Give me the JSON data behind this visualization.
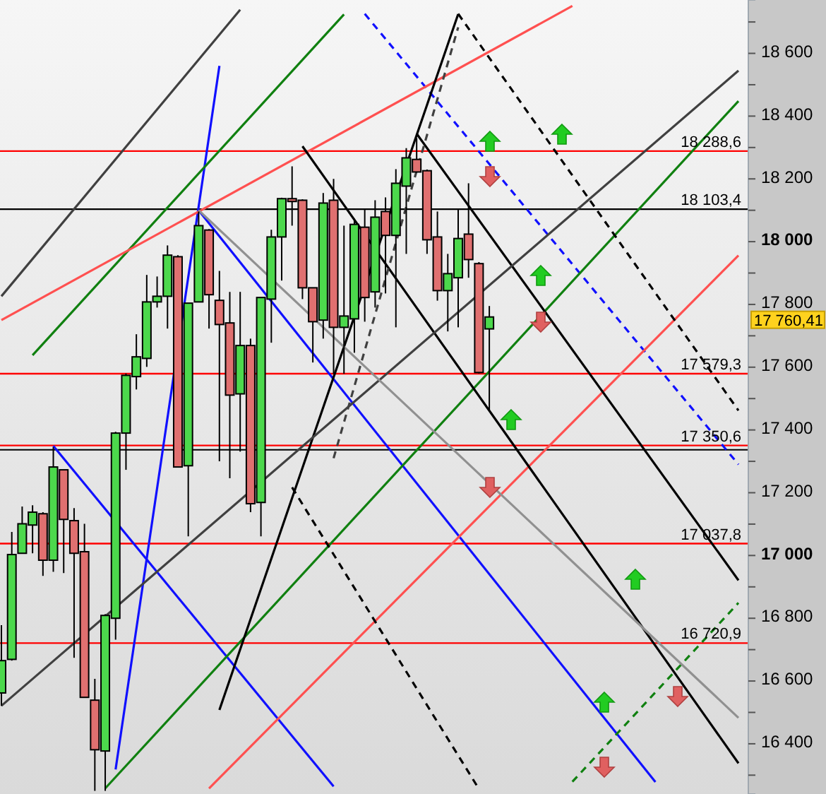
{
  "chart_data": {
    "type": "candlestick",
    "tick_labels": "y",
    "ylim": [
      16240,
      18770
    ],
    "yticks": [
      {
        "value": 16300,
        "label": null
      },
      {
        "value": 16400,
        "label": "16 400"
      },
      {
        "value": 16500,
        "label": null
      },
      {
        "value": 16600,
        "label": "16 600"
      },
      {
        "value": 16700,
        "label": null
      },
      {
        "value": 16800,
        "label": "16 800"
      },
      {
        "value": 16900,
        "label": null
      },
      {
        "value": 17000,
        "label": "17 000"
      },
      {
        "value": 17100,
        "label": null
      },
      {
        "value": 17200,
        "label": "17 200"
      },
      {
        "value": 17300,
        "label": null
      },
      {
        "value": 17400,
        "label": "17 400"
      },
      {
        "value": 17500,
        "label": null
      },
      {
        "value": 17600,
        "label": "17 600"
      },
      {
        "value": 17700,
        "label": null
      },
      {
        "value": 17800,
        "label": "17 800"
      },
      {
        "value": 17900,
        "label": null
      },
      {
        "value": 18000,
        "label": "18 000"
      },
      {
        "value": 18100,
        "label": null
      },
      {
        "value": 18200,
        "label": "18 200"
      },
      {
        "value": 18300,
        "label": null
      },
      {
        "value": 18400,
        "label": "18 400"
      },
      {
        "value": 18500,
        "label": null
      },
      {
        "value": 18600,
        "label": "18 600"
      },
      {
        "value": 18700,
        "label": null
      }
    ],
    "categories": [
      null,
      null,
      null,
      null,
      null,
      null,
      null,
      null,
      null,
      null,
      null,
      null,
      null,
      null,
      null,
      null,
      null,
      null,
      null,
      null,
      null,
      null,
      null,
      null,
      null,
      null,
      null,
      null,
      null,
      null,
      null,
      null,
      null,
      null,
      null,
      null,
      null,
      null,
      null,
      null,
      null,
      null,
      null,
      null,
      null,
      null,
      null,
      null,
      null,
      null,
      null,
      null,
      null,
      null,
      null,
      null,
      null,
      null,
      null,
      null,
      null,
      null,
      null,
      null,
      null,
      null,
      null,
      null,
      null,
      null,
      null,
      null
    ],
    "ohlc": [
      [
        16562,
        16778,
        16521,
        16665
      ],
      [
        16669,
        17075,
        16665,
        17003
      ],
      [
        17007,
        17156,
        17007,
        17101
      ],
      [
        17097,
        17160,
        17007,
        17138
      ],
      [
        17133,
        17138,
        16935,
        16985
      ],
      [
        16985,
        17345,
        16948,
        17282
      ],
      [
        17273,
        17273,
        16944,
        17115
      ],
      [
        17111,
        17151,
        16674,
        17007
      ],
      [
        17012,
        17101,
        16548,
        16548
      ],
      [
        16539,
        16607,
        16250,
        16381
      ],
      [
        16377,
        16813,
        16250,
        16809
      ],
      [
        16800,
        17394,
        16732,
        17390
      ],
      [
        17390,
        17580,
        17273,
        17574
      ],
      [
        17570,
        17705,
        17529,
        17633
      ],
      [
        17628,
        17894,
        17601,
        17808
      ],
      [
        17808,
        17889,
        17790,
        17826
      ],
      [
        17826,
        17988,
        17723,
        17957
      ],
      [
        17952,
        17957,
        17280,
        17282
      ],
      [
        17286,
        17804,
        17061,
        17804
      ],
      [
        17808,
        18096,
        17808,
        18051
      ],
      [
        18037,
        18040,
        17723,
        17831
      ],
      [
        17813,
        17907,
        17300,
        17736
      ],
      [
        17741,
        17840,
        17246,
        17511
      ],
      [
        17515,
        17840,
        17331,
        17669
      ],
      [
        17669,
        17691,
        17138,
        17165
      ],
      [
        17169,
        17822,
        17061,
        17822
      ],
      [
        17817,
        18038,
        17678,
        18015
      ],
      [
        18015,
        18140,
        17876,
        18137
      ],
      [
        18137,
        18240,
        18051,
        18128
      ],
      [
        18132,
        18135,
        17817,
        17853
      ],
      [
        17853,
        17853,
        17615,
        17745
      ],
      [
        17750,
        18155,
        17691,
        18123
      ],
      [
        18132,
        18200,
        17579,
        17727
      ],
      [
        17727,
        18051,
        17579,
        17763
      ],
      [
        17754,
        18073,
        17646,
        18055
      ],
      [
        18046,
        18105,
        17745,
        17822
      ],
      [
        17840,
        18132,
        17790,
        18078
      ],
      [
        18096,
        18141,
        17835,
        18020
      ],
      [
        18020,
        18231,
        17727,
        18186
      ],
      [
        18177,
        18298,
        17961,
        18267
      ],
      [
        18262,
        18330,
        18220,
        18222
      ],
      [
        18226,
        18230,
        17961,
        18006
      ],
      [
        18015,
        18096,
        17812,
        17844
      ],
      [
        17844,
        17961,
        17714,
        17898
      ],
      [
        17885,
        18105,
        17727,
        18010
      ],
      [
        18024,
        18186,
        17885,
        17943
      ],
      [
        17930,
        17935,
        17580,
        17583
      ],
      [
        17722,
        17795,
        17461,
        17760
      ],
      null,
      null,
      null,
      null,
      null,
      null,
      null,
      null,
      null,
      null,
      null,
      null,
      null,
      null,
      null,
      null,
      null,
      null,
      null,
      null,
      null,
      null,
      null,
      null
    ],
    "series": [
      {
        "type": "line",
        "color": "#1010ff",
        "line_style": "solid",
        "values": [
          null,
          null,
          null,
          null,
          null,
          17349,
          null,
          null,
          null,
          null,
          null,
          null,
          null,
          null,
          null,
          null,
          null,
          null,
          null,
          null,
          null,
          null,
          null,
          null,
          null,
          null,
          null,
          null,
          null,
          null,
          null,
          null,
          16264,
          null,
          null,
          null,
          null,
          null,
          null,
          null,
          null,
          null,
          null,
          null,
          null,
          null,
          null,
          null,
          null,
          null,
          null,
          null,
          null,
          null,
          null,
          null,
          null,
          null,
          null,
          null,
          null,
          null,
          null,
          null,
          null,
          null,
          null,
          null,
          null,
          null,
          null,
          null
        ]
      },
      {
        "type": "line",
        "color": "#1010ff",
        "line_style": "solid",
        "values": [
          null,
          null,
          null,
          null,
          null,
          null,
          null,
          null,
          null,
          null,
          null,
          16318,
          null,
          null,
          null,
          null,
          null,
          null,
          null,
          null,
          null,
          18560,
          null,
          null,
          null,
          null,
          null,
          null,
          null,
          null,
          null,
          null,
          null,
          null,
          null,
          null,
          null,
          null,
          null,
          null,
          null,
          null,
          null,
          null,
          null,
          null,
          null,
          null,
          null,
          null,
          null,
          null,
          null,
          null,
          null,
          null,
          null,
          null,
          null,
          null,
          null,
          null,
          null,
          null,
          null,
          null,
          null,
          null,
          null,
          null,
          null,
          null
        ]
      },
      {
        "type": "line",
        "color": "#1010ff",
        "line_style": "solid",
        "values": [
          null,
          null,
          null,
          null,
          null,
          null,
          null,
          null,
          null,
          null,
          null,
          null,
          null,
          null,
          null,
          null,
          null,
          null,
          null,
          18100,
          null,
          null,
          null,
          null,
          null,
          null,
          null,
          null,
          null,
          null,
          null,
          null,
          null,
          null,
          null,
          null,
          null,
          null,
          null,
          null,
          null,
          null,
          null,
          null,
          null,
          null,
          null,
          null,
          null,
          null,
          null,
          null,
          null,
          null,
          null,
          null,
          null,
          null,
          null,
          null,
          null,
          null,
          null,
          16278,
          null,
          null,
          null,
          null,
          null,
          null,
          null,
          null
        ]
      },
      {
        "type": "line",
        "color": "#1010ff",
        "line_style": "dashed",
        "values": [
          null,
          null,
          null,
          null,
          null,
          null,
          null,
          null,
          null,
          null,
          null,
          null,
          null,
          null,
          null,
          null,
          null,
          null,
          null,
          null,
          null,
          null,
          null,
          null,
          null,
          null,
          null,
          null,
          null,
          null,
          null,
          null,
          null,
          null,
          null,
          18726,
          null,
          null,
          null,
          null,
          null,
          null,
          null,
          null,
          null,
          null,
          null,
          null,
          null,
          null,
          null,
          null,
          null,
          null,
          null,
          null,
          null,
          null,
          null,
          null,
          null,
          null,
          null,
          null,
          null,
          null,
          null,
          null,
          null,
          null,
          null,
          17290
        ]
      },
      {
        "type": "line",
        "color": "#108010",
        "line_style": "solid",
        "values": [
          null,
          null,
          null,
          17638,
          null,
          null,
          null,
          null,
          null,
          null,
          null,
          null,
          null,
          null,
          null,
          null,
          null,
          null,
          null,
          null,
          null,
          null,
          null,
          null,
          null,
          null,
          null,
          null,
          null,
          null,
          null,
          null,
          null,
          18724,
          null,
          null,
          null,
          null,
          null,
          null,
          null,
          null,
          null,
          null,
          null,
          null,
          null,
          null,
          null,
          null,
          null,
          null,
          null,
          null,
          null,
          null,
          null,
          null,
          null,
          null,
          null,
          null,
          null,
          null,
          null,
          null,
          null,
          null,
          null,
          null,
          null,
          null
        ]
      },
      {
        "type": "line",
        "color": "#108010",
        "line_style": "solid",
        "values": [
          null,
          null,
          null,
          null,
          null,
          null,
          null,
          null,
          null,
          null,
          16258,
          null,
          null,
          null,
          null,
          null,
          null,
          null,
          null,
          null,
          null,
          null,
          null,
          null,
          null,
          null,
          null,
          null,
          null,
          null,
          null,
          null,
          null,
          null,
          null,
          null,
          null,
          null,
          null,
          null,
          null,
          null,
          null,
          null,
          null,
          null,
          null,
          null,
          null,
          null,
          null,
          null,
          null,
          null,
          null,
          null,
          null,
          null,
          null,
          null,
          null,
          null,
          null,
          null,
          null,
          null,
          null,
          null,
          null,
          null,
          null,
          18448
        ]
      },
      {
        "type": "line",
        "color": "#108010",
        "line_style": "dashed",
        "values": [
          null,
          null,
          null,
          null,
          null,
          null,
          null,
          null,
          null,
          null,
          null,
          null,
          null,
          null,
          null,
          null,
          null,
          null,
          null,
          null,
          null,
          null,
          null,
          null,
          null,
          null,
          null,
          null,
          null,
          null,
          null,
          null,
          null,
          null,
          null,
          null,
          null,
          null,
          null,
          null,
          null,
          null,
          null,
          null,
          null,
          null,
          null,
          null,
          null,
          null,
          null,
          null,
          null,
          null,
          null,
          16279,
          null,
          null,
          null,
          null,
          null,
          null,
          null,
          null,
          null,
          null,
          null,
          null,
          null,
          null,
          null,
          16849
        ]
      },
      {
        "type": "line",
        "color": "#ff5050",
        "line_style": "solid",
        "values": [
          17750,
          null,
          null,
          null,
          null,
          null,
          null,
          null,
          null,
          null,
          null,
          null,
          null,
          null,
          null,
          null,
          null,
          null,
          null,
          null,
          null,
          null,
          null,
          null,
          null,
          null,
          null,
          null,
          null,
          null,
          null,
          null,
          null,
          null,
          null,
          null,
          null,
          null,
          null,
          null,
          null,
          null,
          null,
          null,
          null,
          null,
          null,
          null,
          null,
          null,
          null,
          null,
          null,
          null,
          null,
          18751,
          null,
          null,
          null,
          null,
          null,
          null,
          null,
          null,
          null,
          null,
          null,
          null,
          null,
          null,
          null,
          null
        ]
      },
      {
        "type": "line",
        "color": "#ff5050",
        "line_style": "solid",
        "values": [
          null,
          null,
          null,
          null,
          null,
          null,
          null,
          null,
          null,
          null,
          null,
          null,
          null,
          null,
          null,
          null,
          null,
          null,
          null,
          null,
          16258,
          null,
          null,
          null,
          null,
          null,
          null,
          null,
          null,
          null,
          null,
          null,
          null,
          null,
          null,
          null,
          null,
          null,
          null,
          null,
          null,
          null,
          null,
          null,
          null,
          null,
          null,
          null,
          null,
          null,
          null,
          null,
          null,
          null,
          null,
          null,
          null,
          null,
          null,
          null,
          null,
          null,
          null,
          null,
          null,
          null,
          null,
          null,
          null,
          null,
          null,
          17956
        ]
      },
      {
        "type": "line",
        "color": "#000000",
        "line_style": "solid",
        "values": [
          null,
          null,
          null,
          null,
          null,
          null,
          null,
          null,
          null,
          null,
          null,
          null,
          null,
          null,
          null,
          null,
          null,
          null,
          null,
          null,
          null,
          16508,
          null,
          null,
          null,
          null,
          null,
          null,
          null,
          null,
          null,
          null,
          null,
          null,
          null,
          null,
          null,
          null,
          null,
          null,
          null,
          null,
          null,
          null,
          18725,
          null,
          null,
          null,
          null,
          null,
          null,
          null,
          null,
          null,
          null,
          null,
          null,
          null,
          null,
          null,
          null,
          null,
          null,
          null,
          null,
          null,
          null,
          null,
          null,
          null,
          null,
          null
        ]
      },
      {
        "type": "line",
        "color": "#000000",
        "line_style": "solid",
        "values": [
          null,
          null,
          null,
          null,
          null,
          null,
          null,
          null,
          null,
          null,
          null,
          null,
          null,
          null,
          null,
          null,
          null,
          null,
          null,
          null,
          null,
          null,
          null,
          null,
          null,
          null,
          null,
          null,
          null,
          18304,
          null,
          null,
          null,
          null,
          null,
          null,
          null,
          null,
          null,
          null,
          null,
          null,
          null,
          null,
          null,
          null,
          null,
          null,
          null,
          null,
          null,
          null,
          null,
          null,
          null,
          null,
          null,
          null,
          null,
          null,
          null,
          null,
          null,
          null,
          null,
          null,
          null,
          null,
          null,
          null,
          null,
          16338
        ]
      },
      {
        "type": "line",
        "color": "#000000",
        "line_style": "solid",
        "values": [
          null,
          null,
          null,
          null,
          null,
          null,
          null,
          null,
          null,
          null,
          null,
          null,
          null,
          null,
          null,
          null,
          null,
          null,
          null,
          null,
          null,
          null,
          null,
          null,
          null,
          null,
          null,
          null,
          null,
          null,
          null,
          null,
          null,
          null,
          null,
          null,
          null,
          null,
          null,
          null,
          18344,
          null,
          null,
          null,
          null,
          null,
          null,
          null,
          null,
          null,
          null,
          null,
          null,
          null,
          null,
          null,
          null,
          null,
          null,
          null,
          null,
          null,
          null,
          null,
          null,
          null,
          null,
          null,
          null,
          null,
          null,
          16921
        ]
      },
      {
        "type": "line",
        "color": "#000000",
        "line_style": "dashed",
        "values": [
          null,
          null,
          null,
          null,
          null,
          null,
          null,
          null,
          null,
          null,
          null,
          null,
          null,
          null,
          null,
          null,
          null,
          null,
          null,
          null,
          null,
          null,
          null,
          null,
          null,
          null,
          null,
          null,
          null,
          null,
          null,
          null,
          null,
          null,
          null,
          null,
          null,
          null,
          null,
          null,
          null,
          null,
          null,
          null,
          18726,
          null,
          null,
          null,
          null,
          null,
          null,
          null,
          null,
          null,
          null,
          null,
          null,
          null,
          null,
          null,
          null,
          null,
          null,
          null,
          null,
          null,
          null,
          null,
          null,
          null,
          null,
          17462
        ]
      },
      {
        "type": "line",
        "color": "#000000",
        "line_style": "dashed",
        "values": [
          null,
          null,
          null,
          null,
          null,
          null,
          null,
          null,
          null,
          null,
          null,
          null,
          null,
          null,
          null,
          null,
          null,
          null,
          null,
          null,
          null,
          null,
          null,
          null,
          null,
          null,
          null,
          null,
          17217,
          null,
          null,
          null,
          null,
          null,
          null,
          null,
          null,
          null,
          null,
          null,
          null,
          null,
          null,
          null,
          null,
          null,
          16256,
          null,
          null,
          null,
          null,
          null,
          null,
          null,
          null,
          null,
          null,
          null,
          null,
          null,
          null,
          null,
          null,
          null,
          null,
          null,
          null,
          null,
          null,
          null,
          null,
          null
        ]
      },
      {
        "type": "line",
        "color": "#404040",
        "line_style": "solid",
        "values": [
          16521,
          null,
          null,
          null,
          null,
          null,
          null,
          null,
          null,
          null,
          null,
          null,
          null,
          null,
          null,
          null,
          null,
          null,
          null,
          null,
          null,
          null,
          null,
          null,
          null,
          null,
          null,
          null,
          null,
          null,
          null,
          null,
          null,
          null,
          null,
          null,
          null,
          null,
          null,
          null,
          null,
          null,
          null,
          null,
          null,
          null,
          null,
          null,
          null,
          null,
          null,
          null,
          null,
          null,
          null,
          null,
          null,
          null,
          null,
          null,
          null,
          null,
          null,
          null,
          null,
          null,
          null,
          null,
          null,
          null,
          null,
          18545
        ]
      },
      {
        "type": "line",
        "color": "#404040",
        "line_style": "solid",
        "values": [
          17826,
          null,
          null,
          null,
          null,
          null,
          null,
          null,
          null,
          null,
          null,
          null,
          null,
          null,
          null,
          null,
          null,
          null,
          null,
          null,
          null,
          null,
          null,
          18739,
          null,
          null,
          null,
          null,
          null,
          null,
          null,
          null,
          null,
          null,
          null,
          null,
          null,
          null,
          null,
          null,
          null,
          null,
          null,
          null,
          null,
          null,
          null,
          null,
          null,
          null,
          null,
          null,
          null,
          null,
          null,
          null,
          null,
          null,
          null,
          null,
          null,
          null,
          null,
          null,
          null,
          null,
          null,
          null,
          null,
          null,
          null,
          null
        ]
      },
      {
        "type": "line",
        "color": "#404040",
        "line_style": "dashed",
        "values": [
          null,
          null,
          null,
          null,
          null,
          null,
          null,
          null,
          null,
          null,
          null,
          null,
          null,
          null,
          null,
          null,
          null,
          null,
          null,
          null,
          null,
          null,
          null,
          null,
          null,
          null,
          null,
          null,
          null,
          null,
          null,
          null,
          17310,
          null,
          null,
          null,
          null,
          null,
          null,
          null,
          null,
          null,
          null,
          null,
          18683,
          null,
          null,
          null,
          null,
          null,
          null,
          null,
          null,
          null,
          null,
          null,
          null,
          null,
          null,
          null,
          null,
          null,
          null,
          null,
          null,
          null,
          null,
          null,
          null,
          null,
          null,
          null
        ]
      },
      {
        "type": "line",
        "color": "#909090",
        "line_style": "solid",
        "values": [
          null,
          null,
          null,
          null,
          null,
          null,
          null,
          null,
          null,
          null,
          null,
          null,
          null,
          null,
          null,
          null,
          null,
          null,
          null,
          18100,
          null,
          null,
          null,
          null,
          null,
          null,
          null,
          null,
          null,
          null,
          null,
          null,
          null,
          null,
          null,
          null,
          null,
          null,
          null,
          null,
          null,
          null,
          null,
          null,
          null,
          null,
          null,
          null,
          null,
          null,
          null,
          null,
          null,
          null,
          null,
          null,
          null,
          null,
          null,
          null,
          null,
          null,
          null,
          null,
          null,
          null,
          null,
          null,
          null,
          null,
          null,
          16483
        ]
      }
    ],
    "ref_lines": [
      {
        "axis": "y",
        "value": 18288.6,
        "label": "18 288,6",
        "color": "#ff0000"
      },
      {
        "axis": "y",
        "value": 18103.4,
        "label": "18 103,4",
        "color": "#000000"
      },
      {
        "axis": "y",
        "value": 17579.3,
        "label": "17 579,3",
        "color": "#ff0000"
      },
      {
        "axis": "y",
        "value": 17350.6,
        "label": "17 350,6",
        "color": "#ff0000"
      },
      {
        "axis": "y",
        "value": 17337,
        "color": "#000000"
      },
      {
        "axis": "y",
        "value": 17037.8,
        "label": "17 037,8",
        "color": "#ff0000"
      },
      {
        "axis": "y",
        "value": 16720.9,
        "label": "16 720,9",
        "color": "#ff0000"
      }
    ],
    "annotations": [
      "17 760,41"
    ]
  }
}
